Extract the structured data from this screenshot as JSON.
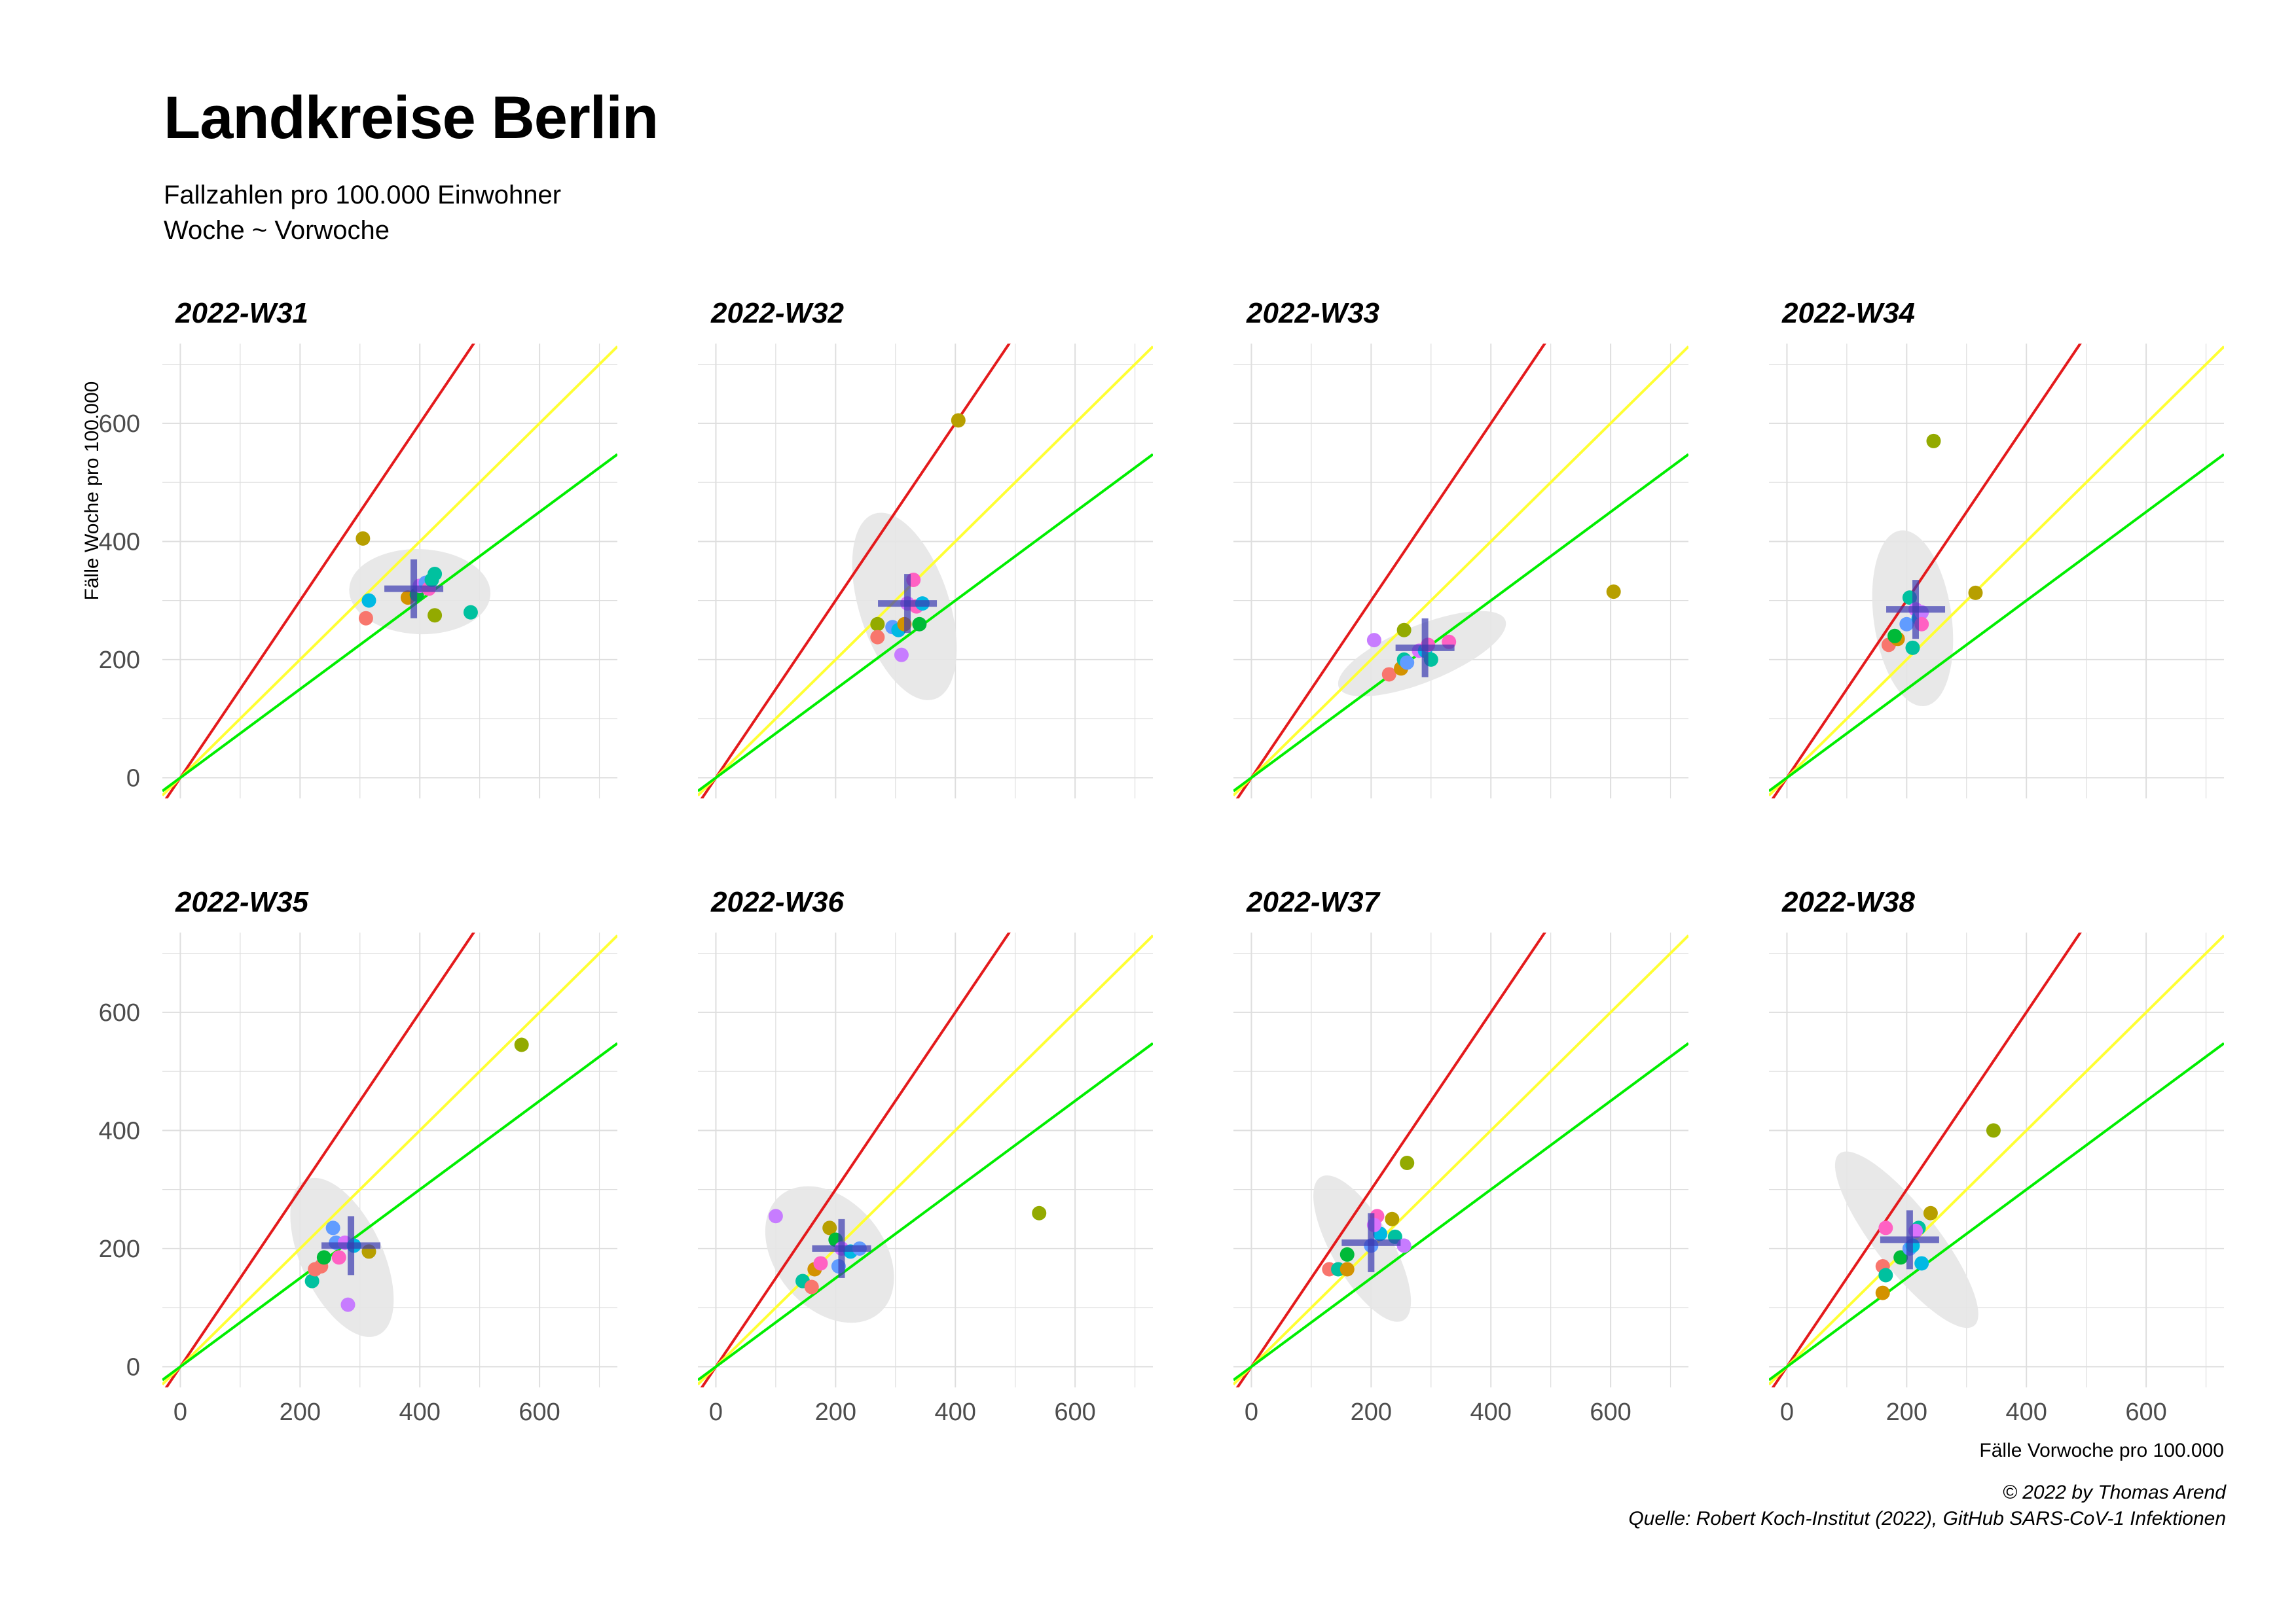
{
  "title": "Landkreise Berlin",
  "subtitle_line1": "Fallzahlen pro 100.000 Einwohner",
  "subtitle_line2": "Woche ~ Vorwoche",
  "caption_line1": "© 2022 by Thomas Arend",
  "caption_line2": "Quelle: Robert Koch-Institut (2022), GitHub SARS-CoV-1 Infektionen",
  "colors": {
    "reference_red": "#e41a1c",
    "reference_yellow": "#ffff33",
    "reference_green": "#00ee00",
    "mean_cross": "#3a3ab0",
    "ellipse": "#e6e6e6",
    "grid": "#dedede"
  },
  "chart_data": {
    "type": "scatter",
    "layout": "facets 2 rows x 4 columns",
    "xlabel": "Fälle Vorwoche pro 100.000",
    "ylabel": "Fälle Woche pro 100.000",
    "xlim": [
      -30,
      730
    ],
    "ylim": [
      -35,
      735
    ],
    "x_ticks": [
      0,
      200,
      400,
      600
    ],
    "y_ticks": [
      0,
      200,
      400,
      600
    ],
    "grid": true,
    "reference_lines": [
      {
        "color": "red",
        "slope": 1.5
      },
      {
        "color": "yellow",
        "slope": 1.0
      },
      {
        "color": "green",
        "slope": 0.75
      }
    ],
    "point_colors": [
      "#f8766d",
      "#d39200",
      "#93aa00",
      "#00ba38",
      "#00c19f",
      "#00b9e3",
      "#619cff",
      "#db72fb",
      "#ff61c3",
      "#c77cff",
      "#8fb300",
      "#b79f00"
    ],
    "panels": [
      {
        "label": "2022-W31",
        "mean": [
          390,
          320
        ],
        "ellipse": {
          "cx": 400,
          "cy": 315,
          "rx": 118,
          "ry": 72,
          "angle": -2
        },
        "points": [
          [
            305,
            405,
            11
          ],
          [
            310,
            270,
            0
          ],
          [
            315,
            300,
            5
          ],
          [
            380,
            305,
            1
          ],
          [
            395,
            310,
            3
          ],
          [
            400,
            325,
            7
          ],
          [
            410,
            330,
            6
          ],
          [
            415,
            320,
            8
          ],
          [
            420,
            335,
            4
          ],
          [
            425,
            345,
            4
          ],
          [
            425,
            275,
            2
          ],
          [
            485,
            280,
            4
          ]
        ]
      },
      {
        "label": "2022-W32",
        "mean": [
          320,
          295
        ],
        "ellipse": {
          "cx": 315,
          "cy": 290,
          "rx": 75,
          "ry": 165,
          "angle": 18
        },
        "points": [
          [
            405,
            605,
            11
          ],
          [
            270,
            260,
            2
          ],
          [
            270,
            238,
            0
          ],
          [
            295,
            255,
            6
          ],
          [
            305,
            250,
            5
          ],
          [
            315,
            260,
            1
          ],
          [
            320,
            295,
            7
          ],
          [
            330,
            335,
            8
          ],
          [
            335,
            290,
            8
          ],
          [
            340,
            260,
            3
          ],
          [
            345,
            295,
            5
          ],
          [
            310,
            208,
            9
          ]
        ]
      },
      {
        "label": "2022-W33",
        "mean": [
          290,
          220
        ],
        "ellipse": {
          "cx": 285,
          "cy": 210,
          "rx": 150,
          "ry": 48,
          "angle": 22
        },
        "points": [
          [
            605,
            315,
            11
          ],
          [
            205,
            233,
            9
          ],
          [
            230,
            175,
            0
          ],
          [
            250,
            185,
            1
          ],
          [
            255,
            250,
            2
          ],
          [
            255,
            200,
            4
          ],
          [
            260,
            195,
            6
          ],
          [
            280,
            215,
            7
          ],
          [
            290,
            215,
            5
          ],
          [
            295,
            225,
            8
          ],
          [
            300,
            200,
            4
          ],
          [
            330,
            230,
            8
          ]
        ]
      },
      {
        "label": "2022-W34",
        "mean": [
          215,
          285
        ],
        "ellipse": {
          "cx": 210,
          "cy": 270,
          "rx": 65,
          "ry": 150,
          "angle": 8
        },
        "points": [
          [
            245,
            570,
            2
          ],
          [
            315,
            313,
            11
          ],
          [
            170,
            225,
            0
          ],
          [
            185,
            235,
            1
          ],
          [
            200,
            260,
            6
          ],
          [
            205,
            305,
            4
          ],
          [
            210,
            220,
            4
          ],
          [
            215,
            285,
            7
          ],
          [
            220,
            270,
            5
          ],
          [
            225,
            280,
            9
          ],
          [
            225,
            260,
            8
          ],
          [
            180,
            240,
            3
          ]
        ]
      },
      {
        "label": "2022-W35",
        "mean": [
          285,
          205
        ],
        "ellipse": {
          "cx": 270,
          "cy": 185,
          "rx": 68,
          "ry": 145,
          "angle": 25
        },
        "points": [
          [
            570,
            545,
            2
          ],
          [
            280,
            105,
            9
          ],
          [
            220,
            145,
            4
          ],
          [
            225,
            165,
            0
          ],
          [
            235,
            170,
            0
          ],
          [
            240,
            185,
            3
          ],
          [
            255,
            235,
            6
          ],
          [
            260,
            210,
            6
          ],
          [
            265,
            185,
            8
          ],
          [
            275,
            210,
            7
          ],
          [
            290,
            205,
            5
          ],
          [
            315,
            195,
            11
          ]
        ]
      },
      {
        "label": "2022-W36",
        "mean": [
          210,
          200
        ],
        "ellipse": {
          "cx": 190,
          "cy": 190,
          "rx": 90,
          "ry": 130,
          "angle": 40
        },
        "points": [
          [
            540,
            260,
            2
          ],
          [
            100,
            255,
            9
          ],
          [
            145,
            145,
            4
          ],
          [
            160,
            135,
            0
          ],
          [
            165,
            165,
            1
          ],
          [
            175,
            175,
            8
          ],
          [
            190,
            235,
            11
          ],
          [
            200,
            215,
            3
          ],
          [
            205,
            170,
            6
          ],
          [
            210,
            200,
            7
          ],
          [
            225,
            195,
            5
          ],
          [
            240,
            200,
            6
          ]
        ]
      },
      {
        "label": "2022-W37",
        "mean": [
          200,
          210
        ],
        "ellipse": {
          "cx": 185,
          "cy": 200,
          "rx": 50,
          "ry": 140,
          "angle": 30
        },
        "points": [
          [
            260,
            345,
            2
          ],
          [
            130,
            165,
            0
          ],
          [
            145,
            165,
            4
          ],
          [
            160,
            190,
            3
          ],
          [
            160,
            165,
            1
          ],
          [
            200,
            205,
            6
          ],
          [
            210,
            255,
            8
          ],
          [
            215,
            225,
            5
          ],
          [
            235,
            250,
            11
          ],
          [
            240,
            220,
            4
          ],
          [
            255,
            205,
            9
          ],
          [
            205,
            240,
            7
          ]
        ]
      },
      {
        "label": "2022-W38",
        "mean": [
          205,
          215
        ],
        "ellipse": {
          "cx": 200,
          "cy": 215,
          "rx": 52,
          "ry": 185,
          "angle": 38
        },
        "points": [
          [
            345,
            400,
            2
          ],
          [
            160,
            125,
            1
          ],
          [
            160,
            170,
            0
          ],
          [
            165,
            155,
            4
          ],
          [
            165,
            235,
            8
          ],
          [
            190,
            185,
            3
          ],
          [
            205,
            200,
            6
          ],
          [
            210,
            205,
            5
          ],
          [
            220,
            235,
            4
          ],
          [
            225,
            175,
            5
          ],
          [
            240,
            260,
            11
          ],
          [
            215,
            230,
            7
          ]
        ]
      }
    ]
  }
}
